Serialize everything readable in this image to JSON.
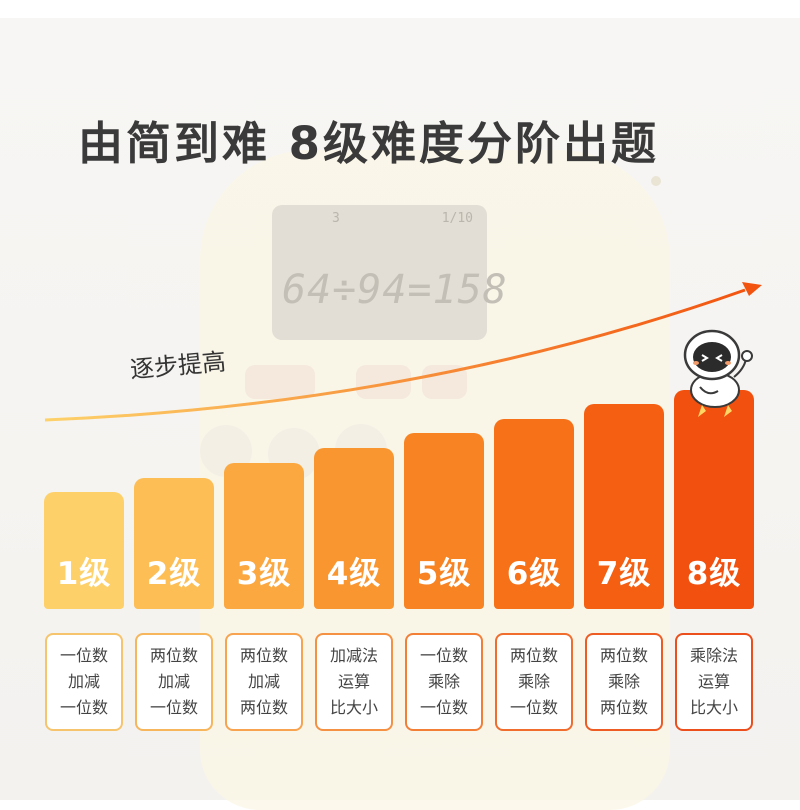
{
  "headline": "由简到难 8级难度分阶出题",
  "progress_label": "逐步提高",
  "device_display": {
    "top_left": "3",
    "top_right": "1/10",
    "equation": "64÷94=158"
  },
  "colors": {
    "headline": "#3a3a3a",
    "curve_start": "#fdd26b",
    "curve_end": "#f2540f"
  },
  "levels": [
    {
      "label": "1级",
      "lines": [
        "一位数",
        "加减",
        "一位数"
      ],
      "color": "#fdd06a",
      "border": "#f6c46c"
    },
    {
      "label": "2级",
      "lines": [
        "两位数",
        "加减",
        "一位数"
      ],
      "color": "#fcbe55",
      "border": "#f7b55c"
    },
    {
      "label": "3级",
      "lines": [
        "两位数",
        "加减",
        "两位数"
      ],
      "color": "#fba840",
      "border": "#f7a34f"
    },
    {
      "label": "4级",
      "lines": [
        "加减法",
        "运算",
        "比大小"
      ],
      "color": "#fa962f",
      "border": "#f59143"
    },
    {
      "label": "5级",
      "lines": [
        "一位数",
        "乘除",
        "一位数"
      ],
      "color": "#f88322",
      "border": "#f37f37"
    },
    {
      "label": "6级",
      "lines": [
        "两位数",
        "乘除",
        "一位数"
      ],
      "color": "#f67118",
      "border": "#f06d2d"
    },
    {
      "label": "7级",
      "lines": [
        "两位数",
        "乘除",
        "两位数"
      ],
      "color": "#f45f12",
      "border": "#ee5c24"
    },
    {
      "label": "8级",
      "lines": [
        "乘除法",
        "运算",
        "比大小"
      ],
      "color": "#f2500e",
      "border": "#ec4e1c"
    }
  ]
}
